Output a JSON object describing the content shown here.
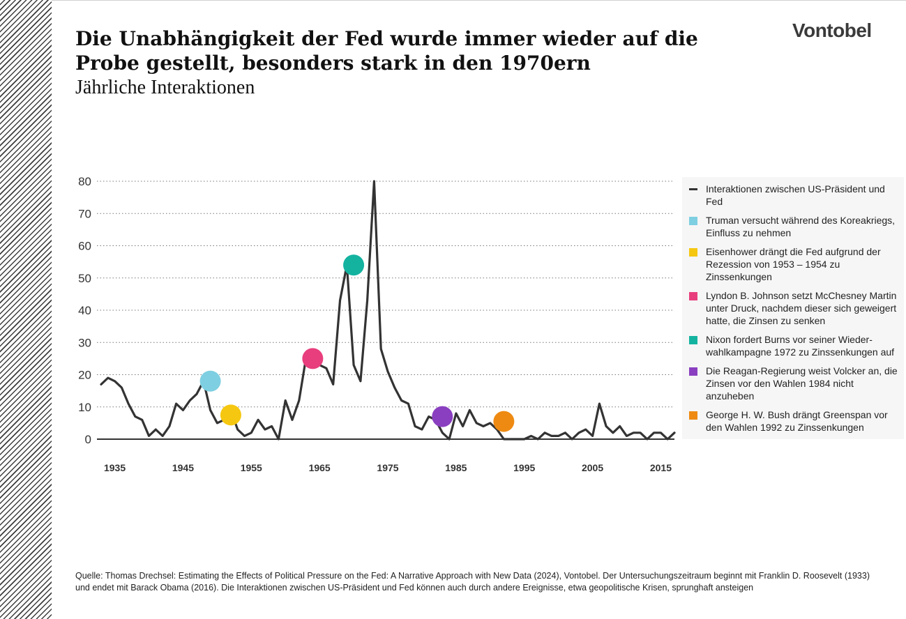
{
  "header": {
    "title": "Die Unabhängigkeit der Fed wurde immer wieder auf die Probe gestellt, besonders stark in den 1970ern",
    "subtitle": "Jährliche Interaktionen",
    "logo": "Vontobel"
  },
  "chart_data": {
    "type": "line",
    "title": "Die Unabhängigkeit der Fed wurde immer wieder auf die Probe gestellt, besonders stark in den 1970ern",
    "subtitle": "Jährliche Interaktionen",
    "xlabel": "",
    "ylabel": "",
    "xlim": [
      1933,
      2017
    ],
    "ylim": [
      0,
      80
    ],
    "x_ticks": [
      1935,
      1945,
      1955,
      1965,
      1975,
      1985,
      1995,
      2005,
      2015
    ],
    "y_ticks": [
      0,
      10,
      20,
      30,
      40,
      50,
      60,
      70,
      80
    ],
    "grid": "horizontal dotted",
    "legend_position": "right",
    "series": [
      {
        "name": "Interaktionen zwischen US-Präsident und Fed",
        "color": "#333333",
        "x": [
          1933,
          1934,
          1935,
          1936,
          1937,
          1938,
          1939,
          1940,
          1941,
          1942,
          1943,
          1944,
          1945,
          1946,
          1947,
          1948,
          1949,
          1950,
          1951,
          1952,
          1953,
          1954,
          1955,
          1956,
          1957,
          1958,
          1959,
          1960,
          1961,
          1962,
          1963,
          1964,
          1965,
          1966,
          1967,
          1968,
          1969,
          1970,
          1971,
          1972,
          1973,
          1974,
          1975,
          1976,
          1977,
          1978,
          1979,
          1980,
          1981,
          1982,
          1983,
          1984,
          1985,
          1986,
          1987,
          1988,
          1989,
          1990,
          1991,
          1992,
          1993,
          1994,
          1995,
          1996,
          1997,
          1998,
          1999,
          2000,
          2001,
          2002,
          2003,
          2004,
          2005,
          2006,
          2007,
          2008,
          2009,
          2010,
          2011,
          2012,
          2013,
          2014,
          2015,
          2016,
          2017
        ],
        "values": [
          17,
          19,
          18,
          16,
          11,
          7,
          6,
          1,
          3,
          1,
          4,
          11,
          9,
          12,
          14,
          18,
          9,
          5,
          6,
          9,
          3,
          1,
          2,
          6,
          3,
          4,
          0,
          12,
          6,
          12,
          25,
          25,
          23,
          22,
          17,
          43,
          54,
          23,
          18,
          43,
          80,
          28,
          21,
          16,
          12,
          11,
          4,
          3,
          7,
          6,
          2,
          0,
          8,
          4,
          9,
          5,
          4,
          5,
          3,
          0,
          0,
          0,
          0,
          1,
          0,
          2,
          1,
          1,
          2,
          0,
          2,
          3,
          1,
          11,
          4,
          2,
          4,
          1,
          2,
          2,
          0,
          2,
          2,
          0,
          2
        ]
      }
    ],
    "events": [
      {
        "name": "Truman versucht während des Koreakriegs, Einfluss zu nehmen",
        "x": 1949,
        "y": 18,
        "color": "#7ecfe1"
      },
      {
        "name": "Eisenhower drängt die Fed aufgrund der Rezession von 1953 – 1954 zu Zinssenkungen",
        "x": 1952,
        "y": 7.5,
        "color": "#f5c710"
      },
      {
        "name": "Lyndon B. Johnson setzt McChesney Martin unter Druck, nachdem dieser sich geweigert hatte, die Zinsen zu senken",
        "x": 1964,
        "y": 25,
        "color": "#e83e7d"
      },
      {
        "name": "Nixon fordert Burns vor seiner Wieder-wahlkampagne 1972 zu Zinssenkungen auf",
        "x": 1970,
        "y": 54,
        "color": "#14b3a0"
      },
      {
        "name": "Die Reagan-Regierung weist Volcker an, die Zinsen vor den Wahlen 1984 nicht anzuheben",
        "x": 1983,
        "y": 7,
        "color": "#8a3fc0"
      },
      {
        "name": "George H. W. Bush drängt Greenspan vor den Wahlen 1992 zu Zinssenkungen",
        "x": 1992,
        "y": 5.5,
        "color": "#ee8a12"
      }
    ]
  },
  "legend": {
    "items": [
      {
        "label": "Interaktionen zwischen US-Präsident und Fed",
        "color": "#333333",
        "kind": "line"
      },
      {
        "label": "Truman versucht während des Koreakriegs, Einfluss zu nehmen",
        "color": "#7ecfe1",
        "kind": "square"
      },
      {
        "label": "Eisenhower drängt die Fed aufgrund der Rezession von 1953 – 1954 zu Zinssenkungen",
        "color": "#f5c710",
        "kind": "square"
      },
      {
        "label": "Lyndon B. Johnson setzt McChesney Martin unter Druck, nachdem dieser sich geweigert hatte, die Zinsen zu senken",
        "color": "#e83e7d",
        "kind": "square"
      },
      {
        "label": "Nixon fordert Burns vor seiner Wieder-wahlkampagne 1972 zu Zinssenkungen auf",
        "color": "#14b3a0",
        "kind": "square"
      },
      {
        "label": "Die Reagan-Regierung weist Volcker an, die Zinsen vor den Wahlen 1984 nicht anzuheben",
        "color": "#8a3fc0",
        "kind": "square"
      },
      {
        "label": "George H. W. Bush drängt Greenspan vor den Wahlen 1992 zu Zinssenkungen",
        "color": "#ee8a12",
        "kind": "square"
      }
    ]
  },
  "footer": {
    "source": "Quelle: Thomas Drechsel: Estimating the Effects of Political Pressure on the Fed: A Narrative Approach with New Data (2024), Vontobel. Der Untersuchungszeitraum beginnt mit Franklin D. Roosevelt (1933) und endet mit Barack Obama (2016). Die Interaktionen zwischen US-Präsident und Fed können auch durch andere Ereignisse, etwa geopolitische Krisen, sprunghaft ansteigen"
  }
}
